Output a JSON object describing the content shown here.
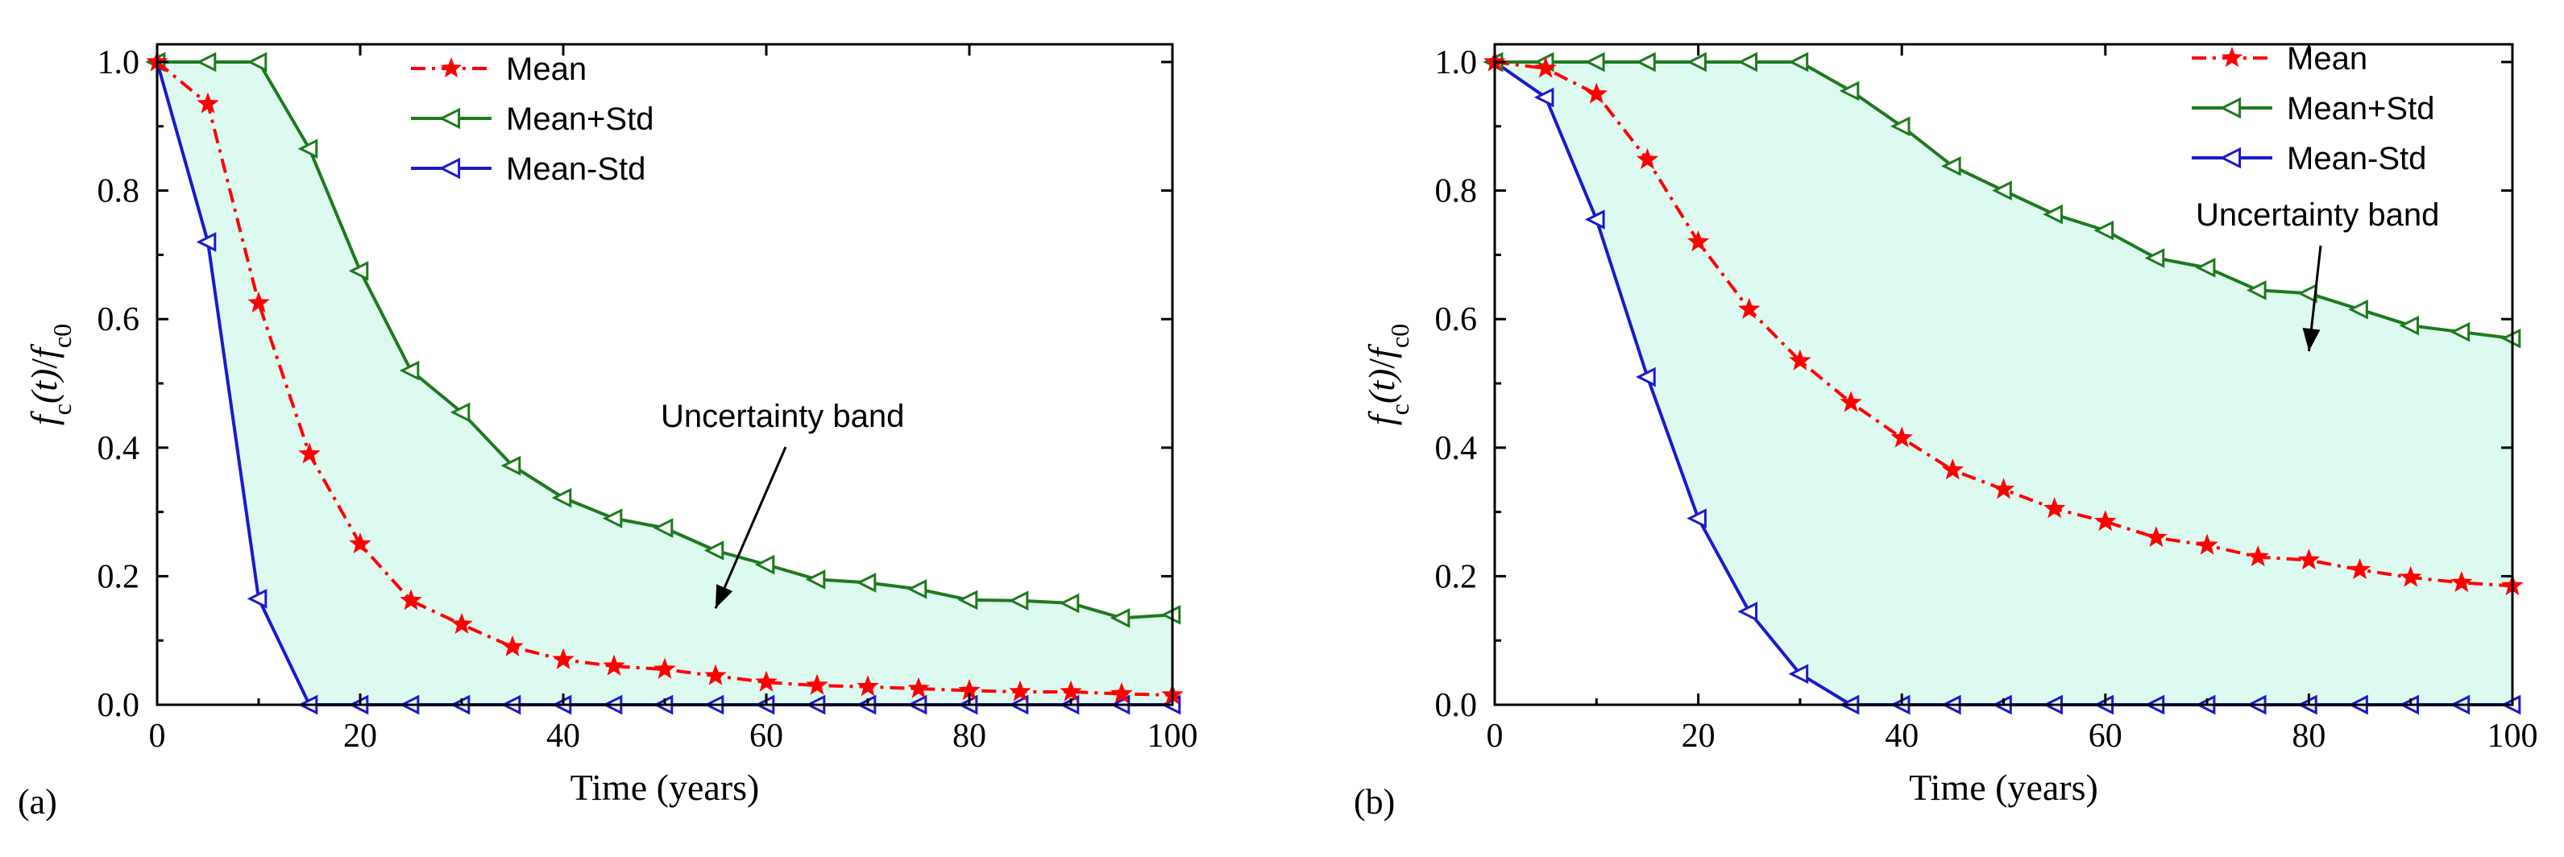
{
  "chart_data": [
    {
      "type": "line",
      "panel_label": "(a)",
      "xlabel": "Time (years)",
      "ylabel": {
        "f": "f",
        "c": "c",
        "t": "(t)",
        "slash": "/",
        "f2": "f",
        "c0": "c0"
      },
      "xlim": [
        0,
        100
      ],
      "ylim": [
        0.0,
        1.0
      ],
      "xticks": [
        "0",
        "20",
        "40",
        "60",
        "80",
        "100"
      ],
      "yticks": [
        "0.0",
        "0.2",
        "0.4",
        "0.6",
        "0.8",
        "1.0"
      ],
      "x": [
        0,
        5,
        10,
        15,
        20,
        25,
        30,
        35,
        40,
        45,
        50,
        55,
        60,
        65,
        70,
        75,
        80,
        85,
        90,
        95,
        100
      ],
      "series": [
        {
          "name": "Mean",
          "color": "#ff0000",
          "marker": "star",
          "dash": "dashdot",
          "values": [
            1.0,
            0.935,
            0.625,
            0.39,
            0.25,
            0.162,
            0.125,
            0.09,
            0.07,
            0.06,
            0.055,
            0.045,
            0.035,
            0.03,
            0.028,
            0.025,
            0.022,
            0.02,
            0.02,
            0.017,
            0.015
          ]
        },
        {
          "name": "Mean+Std",
          "color": "#1e7a1e",
          "marker": "triangle-left",
          "dash": "solid",
          "values": [
            1.0,
            1.0,
            1.0,
            0.865,
            0.675,
            0.52,
            0.455,
            0.372,
            0.322,
            0.29,
            0.275,
            0.24,
            0.218,
            0.195,
            0.19,
            0.18,
            0.163,
            0.162,
            0.158,
            0.135,
            0.14
          ]
        },
        {
          "name": "Mean-Std",
          "color": "#1a1acc",
          "marker": "triangle-left",
          "dash": "solid",
          "values": [
            1.0,
            0.72,
            0.165,
            0.0,
            0.0,
            0.0,
            0.0,
            0.0,
            0.0,
            0.0,
            0.0,
            0.0,
            0.0,
            0.0,
            0.0,
            0.0,
            0.0,
            0.0,
            0.0,
            0.0,
            0.0
          ]
        }
      ],
      "band_color": "#dcfaf0",
      "legend_position": "top-center",
      "annotation": {
        "text": "Uncertainty band",
        "points_to_x": 55,
        "points_to_y": 0.15
      }
    },
    {
      "type": "line",
      "panel_label": "(b)",
      "xlabel": "Time (years)",
      "ylabel": {
        "f": "f",
        "c": "c",
        "t": "(t)",
        "slash": "/",
        "f2": "f",
        "c0": "c0"
      },
      "xlim": [
        0,
        100
      ],
      "ylim": [
        0.0,
        1.0
      ],
      "xticks": [
        "0",
        "20",
        "40",
        "60",
        "80",
        "100"
      ],
      "yticks": [
        "0.0",
        "0.2",
        "0.4",
        "0.6",
        "0.8",
        "1.0"
      ],
      "x": [
        0,
        5,
        10,
        15,
        20,
        25,
        30,
        35,
        40,
        45,
        50,
        55,
        60,
        65,
        70,
        75,
        80,
        85,
        90,
        95,
        100
      ],
      "series": [
        {
          "name": "Mean",
          "color": "#ff0000",
          "marker": "star",
          "dash": "dashdot",
          "values": [
            1.0,
            0.99,
            0.95,
            0.848,
            0.72,
            0.615,
            0.535,
            0.47,
            0.415,
            0.365,
            0.335,
            0.305,
            0.285,
            0.26,
            0.248,
            0.23,
            0.225,
            0.21,
            0.198,
            0.19,
            0.185
          ]
        },
        {
          "name": "Mean+Std",
          "color": "#1e7a1e",
          "marker": "triangle-left",
          "dash": "solid",
          "values": [
            1.0,
            1.0,
            1.0,
            1.0,
            1.0,
            1.0,
            1.0,
            0.955,
            0.9,
            0.838,
            0.8,
            0.763,
            0.738,
            0.695,
            0.68,
            0.645,
            0.64,
            0.615,
            0.59,
            0.58,
            0.57
          ]
        },
        {
          "name": "Mean-Std",
          "color": "#1a1acc",
          "marker": "triangle-left",
          "dash": "solid",
          "values": [
            1.0,
            0.945,
            0.755,
            0.51,
            0.29,
            0.145,
            0.048,
            0.0,
            0.0,
            0.0,
            0.0,
            0.0,
            0.0,
            0.0,
            0.0,
            0.0,
            0.0,
            0.0,
            0.0,
            0.0,
            0.0
          ]
        }
      ],
      "band_color": "#dcfaf0",
      "legend_position": "top-right",
      "annotation": {
        "text": "Uncertainty band",
        "points_to_x": 80,
        "points_to_y": 0.55
      }
    }
  ]
}
